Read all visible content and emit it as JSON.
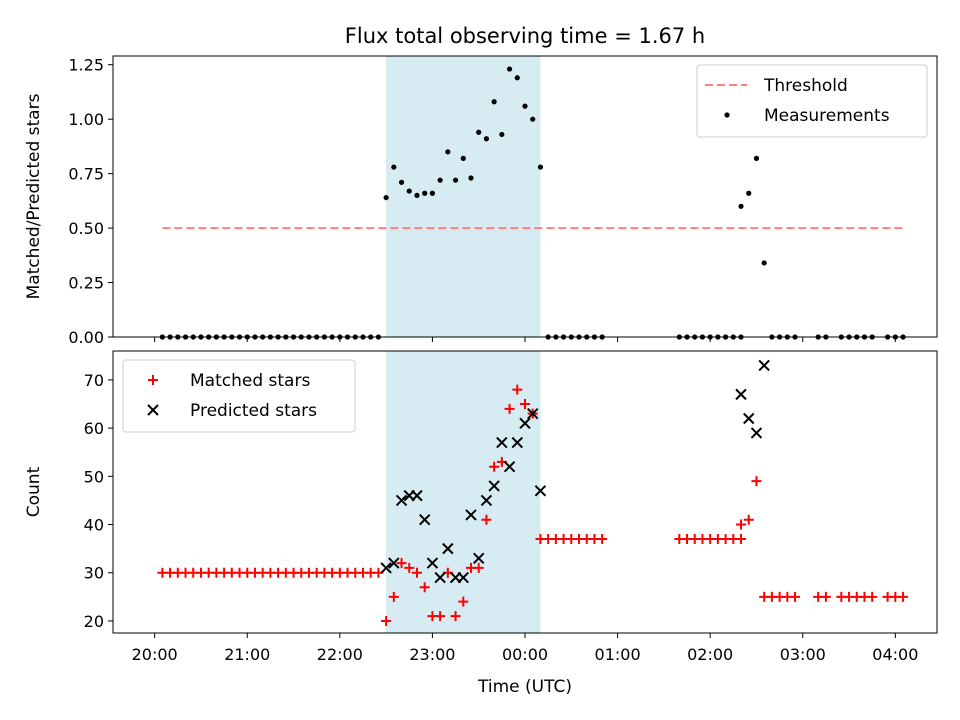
{
  "title": "Flux total observing time = 1.67 h",
  "chart_data": [
    {
      "type": "scatter",
      "panel": "top",
      "ylabel": "Matched/Predicted stars",
      "ylim": [
        0,
        1.29
      ],
      "yticks": [
        0,
        0.25,
        0.5,
        0.75,
        1.0,
        1.25
      ],
      "ytick_labels": [
        "0.00",
        "0.25",
        "0.50",
        "0.75",
        "1.00",
        "1.25"
      ],
      "legend_position": "top-right",
      "shaded_interval": [
        "22:30",
        "00:10"
      ],
      "threshold": {
        "name": "Threshold",
        "value": 0.5,
        "x_range": [
          "20:05",
          "04:05"
        ],
        "color": "#ff7f7f"
      },
      "series": [
        {
          "name": "Measurements",
          "marker": "dot",
          "color": "#000000",
          "points": [
            [
              "20:05",
              0
            ],
            [
              "20:10",
              0
            ],
            [
              "20:15",
              0
            ],
            [
              "20:20",
              0
            ],
            [
              "20:25",
              0
            ],
            [
              "20:30",
              0
            ],
            [
              "20:35",
              0
            ],
            [
              "20:40",
              0
            ],
            [
              "20:45",
              0
            ],
            [
              "20:50",
              0
            ],
            [
              "20:55",
              0
            ],
            [
              "21:00",
              0
            ],
            [
              "21:05",
              0
            ],
            [
              "21:10",
              0
            ],
            [
              "21:15",
              0
            ],
            [
              "21:20",
              0
            ],
            [
              "21:25",
              0
            ],
            [
              "21:30",
              0
            ],
            [
              "21:35",
              0
            ],
            [
              "21:40",
              0
            ],
            [
              "21:45",
              0
            ],
            [
              "21:50",
              0
            ],
            [
              "21:55",
              0
            ],
            [
              "22:00",
              0
            ],
            [
              "22:05",
              0
            ],
            [
              "22:10",
              0
            ],
            [
              "22:15",
              0
            ],
            [
              "22:20",
              0
            ],
            [
              "22:25",
              0
            ],
            [
              "22:30",
              0.64
            ],
            [
              "22:35",
              0.78
            ],
            [
              "22:40",
              0.71
            ],
            [
              "22:45",
              0.67
            ],
            [
              "22:50",
              0.65
            ],
            [
              "22:55",
              0.66
            ],
            [
              "23:00",
              0.66
            ],
            [
              "23:05",
              0.72
            ],
            [
              "23:10",
              0.85
            ],
            [
              "23:15",
              0.72
            ],
            [
              "23:20",
              0.82
            ],
            [
              "23:25",
              0.73
            ],
            [
              "23:30",
              0.94
            ],
            [
              "23:35",
              0.91
            ],
            [
              "23:40",
              1.08
            ],
            [
              "23:45",
              0.93
            ],
            [
              "23:50",
              1.23
            ],
            [
              "23:55",
              1.19
            ],
            [
              "00:00",
              1.06
            ],
            [
              "00:05",
              1.0
            ],
            [
              "00:10",
              0.78
            ],
            [
              "00:15",
              0
            ],
            [
              "00:20",
              0
            ],
            [
              "00:25",
              0
            ],
            [
              "00:30",
              0
            ],
            [
              "00:35",
              0
            ],
            [
              "00:40",
              0
            ],
            [
              "00:45",
              0
            ],
            [
              "00:50",
              0
            ],
            [
              "01:40",
              0
            ],
            [
              "01:45",
              0
            ],
            [
              "01:50",
              0
            ],
            [
              "01:55",
              0
            ],
            [
              "02:00",
              0
            ],
            [
              "02:05",
              0
            ],
            [
              "02:10",
              0
            ],
            [
              "02:15",
              0
            ],
            [
              "02:20",
              0
            ],
            [
              "02:20",
              0.6
            ],
            [
              "02:25",
              0.66
            ],
            [
              "02:30",
              0.82
            ],
            [
              "02:35",
              0.34
            ],
            [
              "02:40",
              0
            ],
            [
              "02:45",
              0
            ],
            [
              "02:50",
              0
            ],
            [
              "02:55",
              0
            ],
            [
              "03:10",
              0
            ],
            [
              "03:15",
              0
            ],
            [
              "03:25",
              0
            ],
            [
              "03:30",
              0
            ],
            [
              "03:35",
              0
            ],
            [
              "03:40",
              0
            ],
            [
              "03:45",
              0
            ],
            [
              "03:55",
              0
            ],
            [
              "04:00",
              0
            ],
            [
              "04:05",
              0
            ]
          ]
        }
      ]
    },
    {
      "type": "scatter",
      "panel": "bottom",
      "xlabel": "Time (UTC)",
      "ylabel": "Count",
      "ylim": [
        17.5,
        76
      ],
      "yticks": [
        20,
        30,
        40,
        50,
        60,
        70
      ],
      "xticks": [
        "20:00",
        "21:00",
        "22:00",
        "23:00",
        "00:00",
        "01:00",
        "02:00",
        "03:00",
        "04:00"
      ],
      "legend_position": "top-left",
      "shaded_interval": [
        "22:30",
        "00:10"
      ],
      "series": [
        {
          "name": "Matched stars",
          "marker": "plus",
          "color": "#ff0000",
          "points": [
            [
              "20:05",
              30
            ],
            [
              "20:10",
              30
            ],
            [
              "20:15",
              30
            ],
            [
              "20:20",
              30
            ],
            [
              "20:25",
              30
            ],
            [
              "20:30",
              30
            ],
            [
              "20:35",
              30
            ],
            [
              "20:40",
              30
            ],
            [
              "20:45",
              30
            ],
            [
              "20:50",
              30
            ],
            [
              "20:55",
              30
            ],
            [
              "21:00",
              30
            ],
            [
              "21:05",
              30
            ],
            [
              "21:10",
              30
            ],
            [
              "21:15",
              30
            ],
            [
              "21:20",
              30
            ],
            [
              "21:25",
              30
            ],
            [
              "21:30",
              30
            ],
            [
              "21:35",
              30
            ],
            [
              "21:40",
              30
            ],
            [
              "21:45",
              30
            ],
            [
              "21:50",
              30
            ],
            [
              "21:55",
              30
            ],
            [
              "22:00",
              30
            ],
            [
              "22:05",
              30
            ],
            [
              "22:10",
              30
            ],
            [
              "22:15",
              30
            ],
            [
              "22:20",
              30
            ],
            [
              "22:25",
              30
            ],
            [
              "22:30",
              20
            ],
            [
              "22:35",
              25
            ],
            [
              "22:40",
              32
            ],
            [
              "22:45",
              31
            ],
            [
              "22:50",
              30
            ],
            [
              "22:55",
              27
            ],
            [
              "23:00",
              21
            ],
            [
              "23:05",
              21
            ],
            [
              "23:10",
              30
            ],
            [
              "23:15",
              21
            ],
            [
              "23:20",
              24
            ],
            [
              "23:25",
              31
            ],
            [
              "23:30",
              31
            ],
            [
              "23:35",
              41
            ],
            [
              "23:40",
              52
            ],
            [
              "23:45",
              53
            ],
            [
              "23:50",
              64
            ],
            [
              "23:55",
              68
            ],
            [
              "00:00",
              65
            ],
            [
              "00:05",
              63
            ],
            [
              "00:10",
              37
            ],
            [
              "00:15",
              37
            ],
            [
              "00:20",
              37
            ],
            [
              "00:25",
              37
            ],
            [
              "00:30",
              37
            ],
            [
              "00:35",
              37
            ],
            [
              "00:40",
              37
            ],
            [
              "00:45",
              37
            ],
            [
              "00:50",
              37
            ],
            [
              "01:40",
              37
            ],
            [
              "01:45",
              37
            ],
            [
              "01:50",
              37
            ],
            [
              "01:55",
              37
            ],
            [
              "02:00",
              37
            ],
            [
              "02:05",
              37
            ],
            [
              "02:10",
              37
            ],
            [
              "02:15",
              37
            ],
            [
              "02:20",
              37
            ],
            [
              "02:20",
              40
            ],
            [
              "02:25",
              41
            ],
            [
              "02:30",
              49
            ],
            [
              "02:35",
              25
            ],
            [
              "02:40",
              25
            ],
            [
              "02:45",
              25
            ],
            [
              "02:50",
              25
            ],
            [
              "02:55",
              25
            ],
            [
              "03:10",
              25
            ],
            [
              "03:15",
              25
            ],
            [
              "03:25",
              25
            ],
            [
              "03:30",
              25
            ],
            [
              "03:35",
              25
            ],
            [
              "03:40",
              25
            ],
            [
              "03:45",
              25
            ],
            [
              "03:55",
              25
            ],
            [
              "04:00",
              25
            ],
            [
              "04:05",
              25
            ]
          ]
        },
        {
          "name": "Predicted stars",
          "marker": "x",
          "color": "#000000",
          "points": [
            [
              "22:30",
              31
            ],
            [
              "22:35",
              32
            ],
            [
              "22:40",
              45
            ],
            [
              "22:45",
              46
            ],
            [
              "22:50",
              46
            ],
            [
              "22:55",
              41
            ],
            [
              "23:00",
              32
            ],
            [
              "23:05",
              29
            ],
            [
              "23:10",
              35
            ],
            [
              "23:15",
              29
            ],
            [
              "23:20",
              29
            ],
            [
              "23:25",
              42
            ],
            [
              "23:30",
              33
            ],
            [
              "23:35",
              45
            ],
            [
              "23:40",
              48
            ],
            [
              "23:45",
              57
            ],
            [
              "23:50",
              52
            ],
            [
              "23:55",
              57
            ],
            [
              "00:00",
              61
            ],
            [
              "00:05",
              63
            ],
            [
              "00:10",
              47
            ],
            [
              "02:20",
              67
            ],
            [
              "02:25",
              62
            ],
            [
              "02:30",
              59
            ],
            [
              "02:35",
              73
            ]
          ]
        }
      ]
    }
  ]
}
